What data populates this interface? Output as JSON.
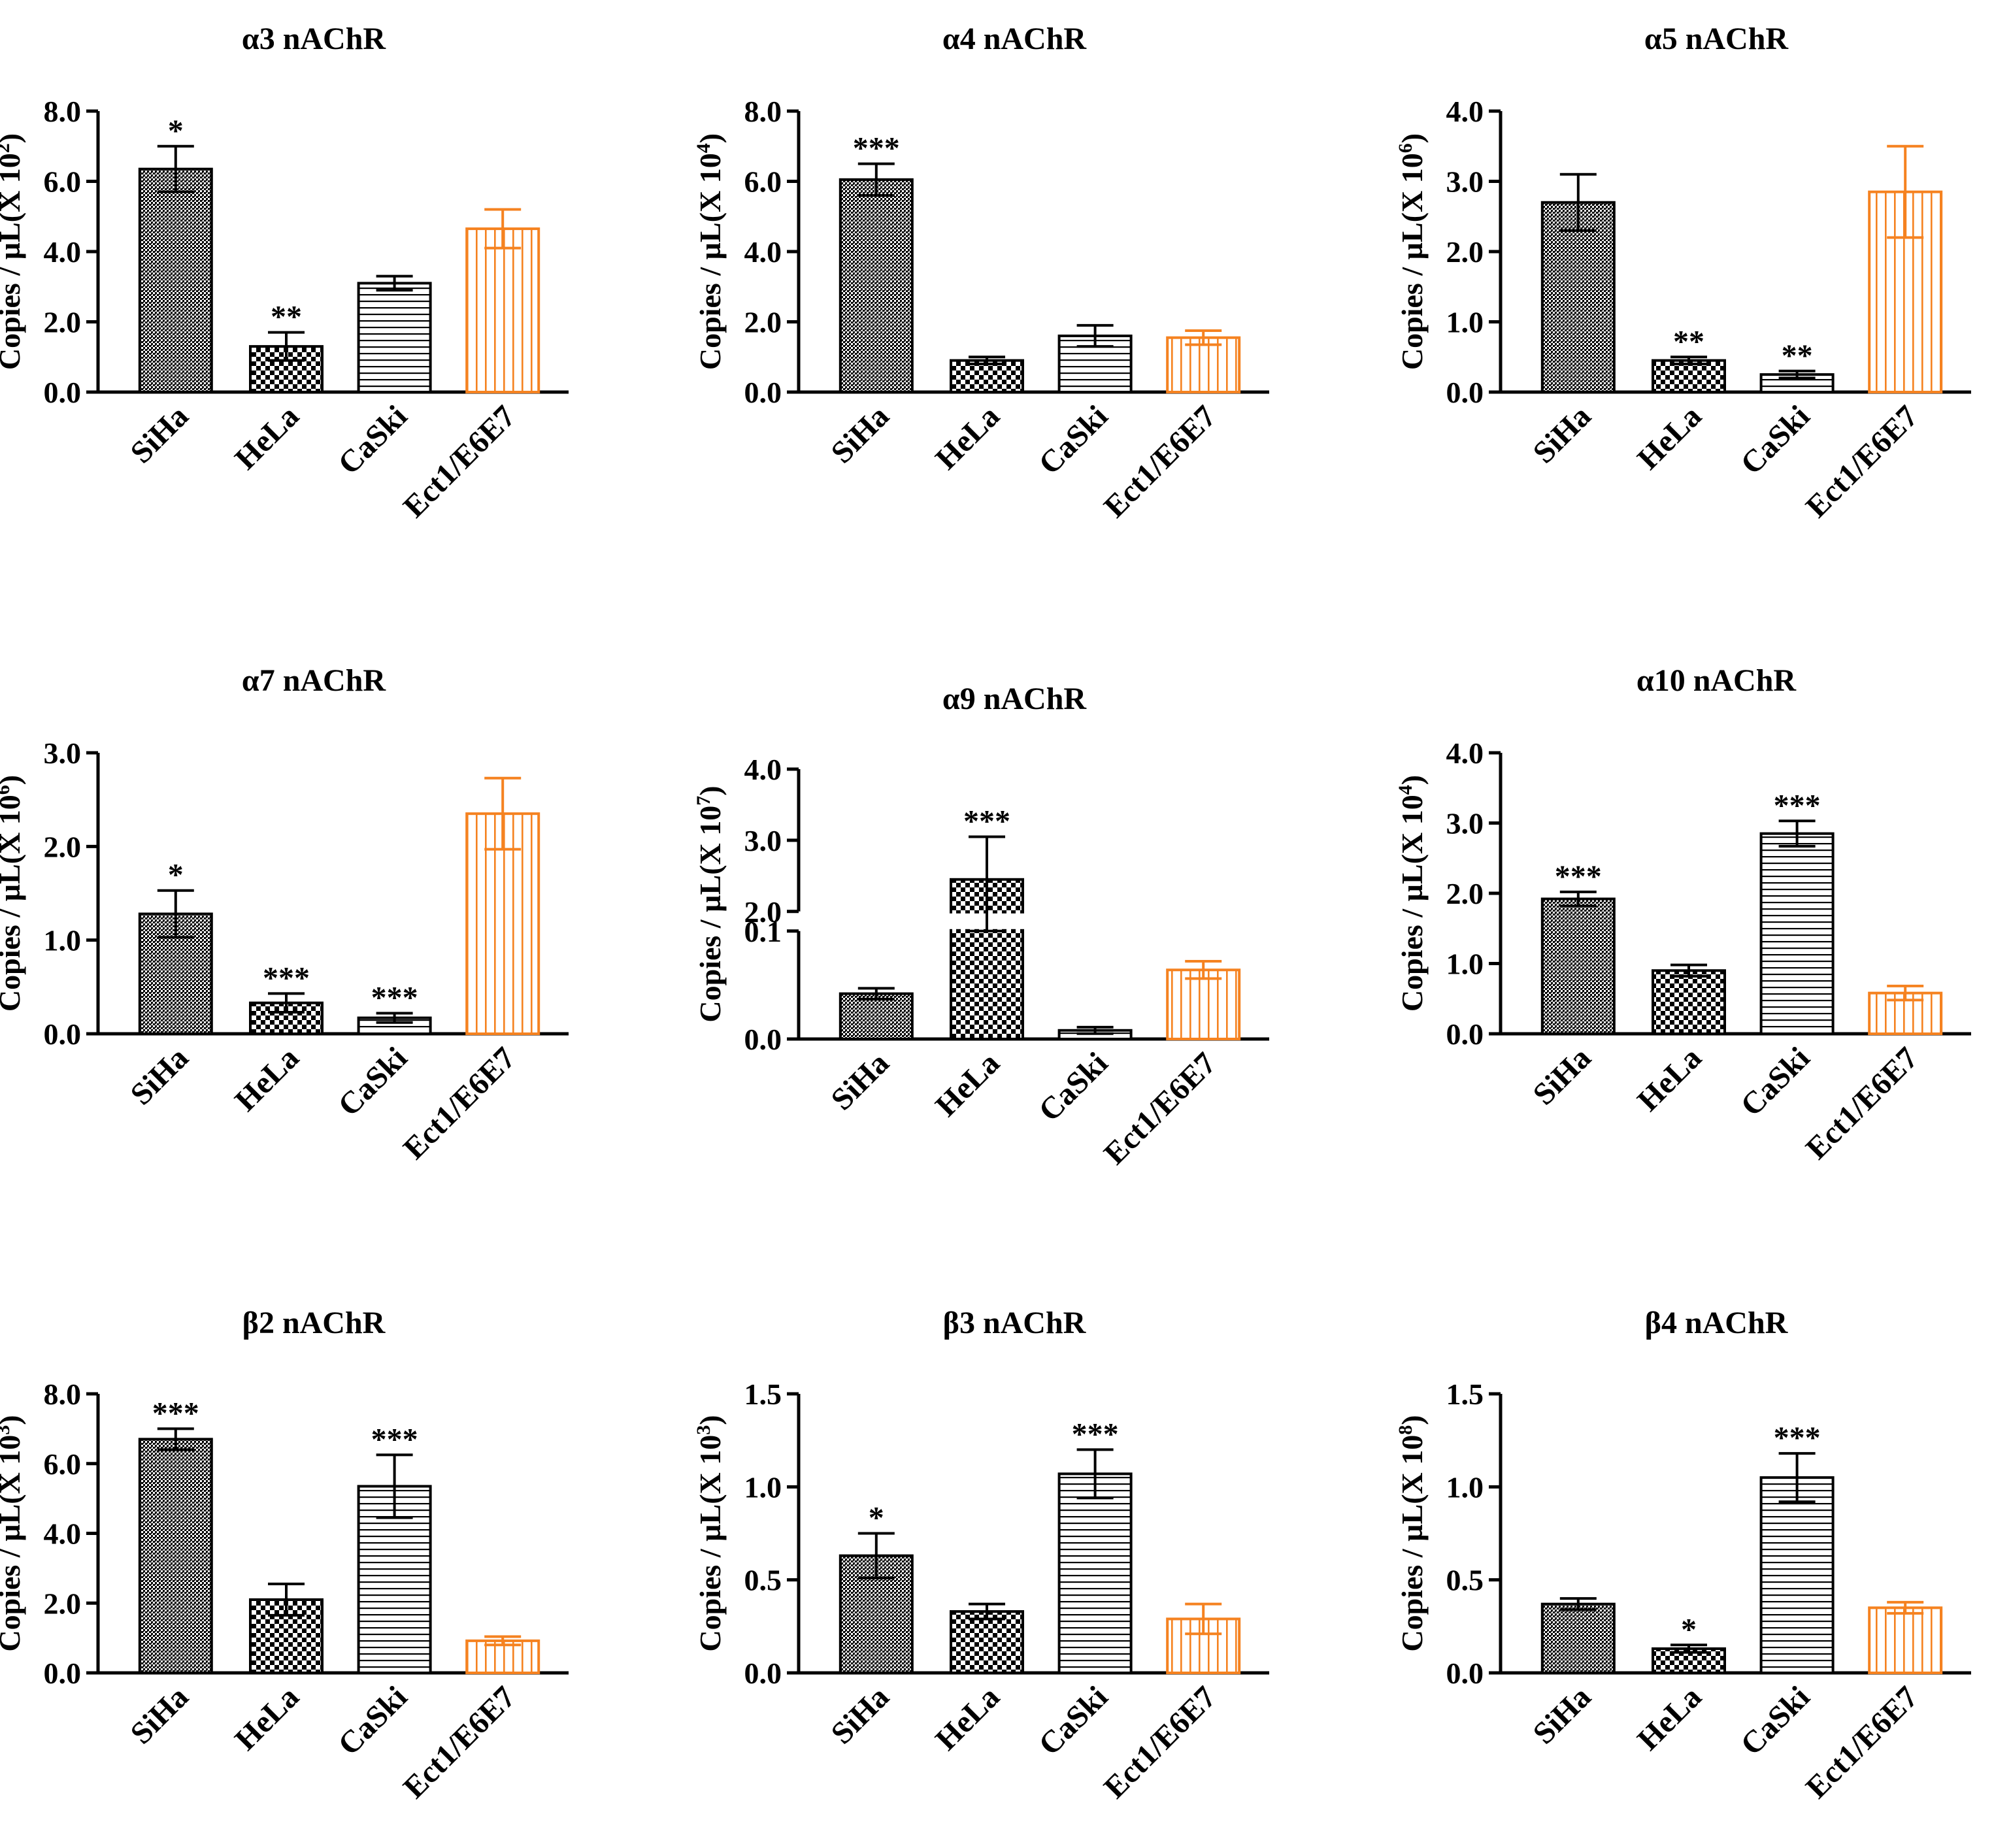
{
  "figure": {
    "categories": [
      "SiHa",
      "HeLa",
      "CaSki",
      "Ect1/E6E7"
    ],
    "colors": {
      "axis": "#000000",
      "bar_dark": "#000000",
      "bar_accent": "#f58220"
    }
  },
  "chart_data": [
    {
      "type": "bar",
      "title": "α3 nAChR",
      "ylabel": "Copies / µL(X 10",
      "ylabel_exp": "2",
      "ylabel_close": ")",
      "categories": [
        "SiHa",
        "HeLa",
        "CaSki",
        "Ect1/E6E7"
      ],
      "ylim": [
        0,
        8
      ],
      "yticks": [
        "0.0",
        "2.0",
        "4.0",
        "6.0",
        "8.0"
      ],
      "series": [
        {
          "name": "copies",
          "values": [
            6.35,
            1.3,
            3.1,
            4.65
          ],
          "errors": [
            0.65,
            0.4,
            0.2,
            0.55
          ],
          "significance": [
            "*",
            "**",
            "",
            ""
          ]
        }
      ]
    },
    {
      "type": "bar",
      "title": "α4 nAChR",
      "ylabel": "Copies / µL(X 10",
      "ylabel_exp": "4",
      "ylabel_close": ")",
      "categories": [
        "SiHa",
        "HeLa",
        "CaSki",
        "Ect1/E6E7"
      ],
      "ylim": [
        0,
        8
      ],
      "yticks": [
        "0.0",
        "2.0",
        "4.0",
        "6.0",
        "8.0"
      ],
      "series": [
        {
          "name": "copies",
          "values": [
            6.05,
            0.9,
            1.6,
            1.55
          ],
          "errors": [
            0.45,
            0.1,
            0.3,
            0.2
          ],
          "significance": [
            "***",
            "",
            "",
            ""
          ]
        }
      ]
    },
    {
      "type": "bar",
      "title": "α5 nAChR",
      "ylabel": "Copies / µL(X 10",
      "ylabel_exp": "6",
      "ylabel_close": ")",
      "categories": [
        "SiHa",
        "HeLa",
        "CaSki",
        "Ect1/E6E7"
      ],
      "ylim": [
        0,
        4
      ],
      "yticks": [
        "0.0",
        "1.0",
        "2.0",
        "3.0",
        "4.0"
      ],
      "series": [
        {
          "name": "copies",
          "values": [
            2.7,
            0.45,
            0.25,
            2.85
          ],
          "errors": [
            0.4,
            0.05,
            0.05,
            0.65
          ],
          "significance": [
            "",
            "**",
            "**",
            ""
          ]
        }
      ]
    },
    {
      "type": "bar",
      "title": "α7 nAChR",
      "ylabel": "Copies / µL(X 10",
      "ylabel_exp": "6",
      "ylabel_close": ")",
      "categories": [
        "SiHa",
        "HeLa",
        "CaSki",
        "Ect1/E6E7"
      ],
      "ylim": [
        0,
        3
      ],
      "yticks": [
        "0.0",
        "1.0",
        "2.0",
        "3.0"
      ],
      "series": [
        {
          "name": "copies",
          "values": [
            1.28,
            0.33,
            0.17,
            2.35
          ],
          "errors": [
            0.25,
            0.1,
            0.05,
            0.38
          ],
          "significance": [
            "*",
            "***",
            "***",
            ""
          ]
        }
      ]
    },
    {
      "type": "bar",
      "title": "α9 nAChR",
      "ylabel": "Copies / µL(X 10",
      "ylabel_exp": "7",
      "ylabel_close": ")",
      "categories": [
        "SiHa",
        "HeLa",
        "CaSki",
        "Ect1/E6E7"
      ],
      "ylim": [
        0,
        4
      ],
      "axis_break": [
        0.1,
        2.0
      ],
      "yticks": [
        "0.0",
        "0.1",
        "2.0",
        "3.0",
        "4.0"
      ],
      "series": [
        {
          "name": "copies",
          "values": [
            0.042,
            2.45,
            0.008,
            0.064
          ],
          "errors": [
            0.005,
            0.6,
            0.003,
            0.008
          ],
          "significance": [
            "",
            "***",
            "",
            ""
          ]
        }
      ]
    },
    {
      "type": "bar",
      "title": "α10 nAChR",
      "ylabel": "Copies / µL(X 10",
      "ylabel_exp": "4",
      "ylabel_close": ")",
      "categories": [
        "SiHa",
        "HeLa",
        "CaSki",
        "Ect1/E6E7"
      ],
      "ylim": [
        0,
        4
      ],
      "yticks": [
        "0.0",
        "1.0",
        "2.0",
        "3.0",
        "4.0"
      ],
      "series": [
        {
          "name": "copies",
          "values": [
            1.92,
            0.9,
            2.85,
            0.58
          ],
          "errors": [
            0.1,
            0.08,
            0.18,
            0.1
          ],
          "significance": [
            "***",
            "",
            "***",
            ""
          ]
        }
      ]
    },
    {
      "type": "bar",
      "title": "β2 nAChR",
      "ylabel": "Copies / µL(X 10",
      "ylabel_exp": "3",
      "ylabel_close": ")",
      "categories": [
        "SiHa",
        "HeLa",
        "CaSki",
        "Ect1/E6E7"
      ],
      "ylim": [
        0,
        8
      ],
      "yticks": [
        "0.0",
        "2.0",
        "4.0",
        "6.0",
        "8.0"
      ],
      "series": [
        {
          "name": "copies",
          "values": [
            6.7,
            2.1,
            5.35,
            0.92
          ],
          "errors": [
            0.3,
            0.45,
            0.9,
            0.12
          ],
          "significance": [
            "***",
            "",
            "***",
            ""
          ]
        }
      ]
    },
    {
      "type": "bar",
      "title": "β3 nAChR",
      "ylabel": "Copies / µL(X 10",
      "ylabel_exp": "3",
      "ylabel_close": ")",
      "categories": [
        "SiHa",
        "HeLa",
        "CaSki",
        "Ect1/E6E7"
      ],
      "ylim": [
        0,
        1.5
      ],
      "yticks": [
        "0.0",
        "0.5",
        "1.0",
        "1.5"
      ],
      "series": [
        {
          "name": "copies",
          "values": [
            0.63,
            0.33,
            1.07,
            0.29
          ],
          "errors": [
            0.12,
            0.04,
            0.13,
            0.08
          ],
          "significance": [
            "*",
            "",
            "***",
            ""
          ]
        }
      ]
    },
    {
      "type": "bar",
      "title": "β4 nAChR",
      "ylabel": "Copies / µL(X 10",
      "ylabel_exp": "8",
      "ylabel_close": ")",
      "categories": [
        "SiHa",
        "HeLa",
        "CaSki",
        "Ect1/E6E7"
      ],
      "ylim": [
        0,
        1.5
      ],
      "yticks": [
        "0.0",
        "0.5",
        "1.0",
        "1.5"
      ],
      "series": [
        {
          "name": "copies",
          "values": [
            0.37,
            0.13,
            1.05,
            0.35
          ],
          "errors": [
            0.03,
            0.02,
            0.13,
            0.03
          ],
          "significance": [
            "",
            "*",
            "***",
            ""
          ]
        }
      ]
    }
  ]
}
